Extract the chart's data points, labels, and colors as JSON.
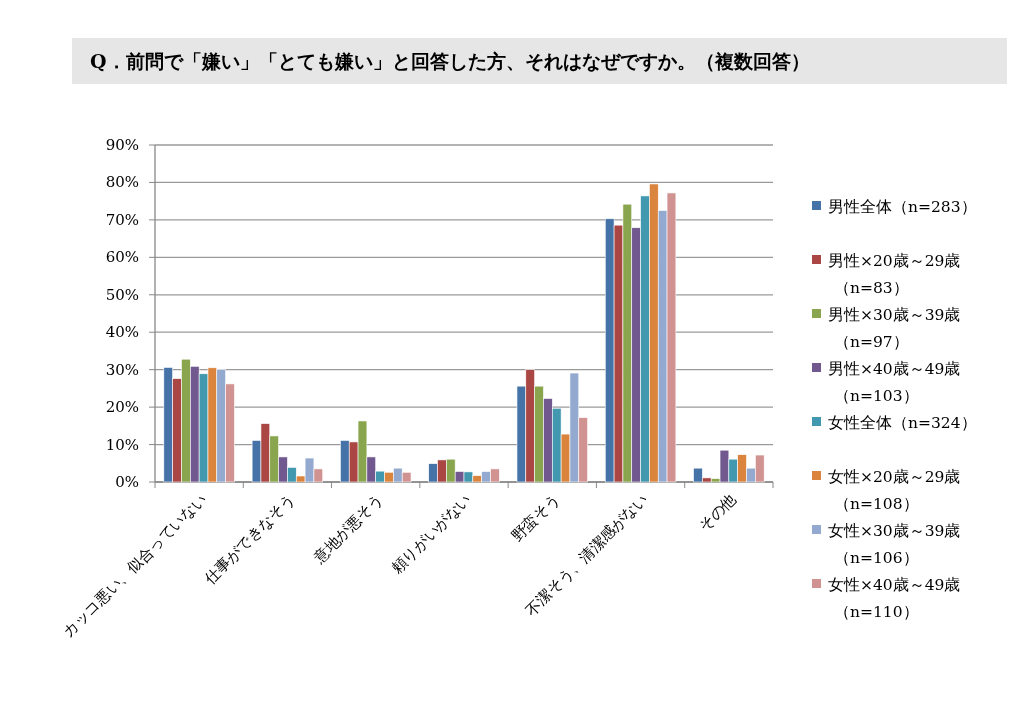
{
  "chart_data": {
    "type": "bar",
    "title": "Q．前問で「嫌い」「とても嫌い」と回答した方、それはなぜですか。（複数回答）",
    "categories": [
      "カッコ悪い、似合っていない",
      "仕事ができなそう",
      "意地が悪そう",
      "頼りがいがない",
      "野蛮そう",
      "不潔そう、清潔感がない",
      "その他"
    ],
    "series": [
      {
        "name": "男性全体（n=283）",
        "color": "#4572a7",
        "values": [
          30.6,
          11.1,
          11.1,
          4.9,
          25.6,
          70.3,
          3.7
        ]
      },
      {
        "name": "男性×20歳～29歳（n=83）",
        "color": "#aa4643",
        "values": [
          27.6,
          15.6,
          10.7,
          5.9,
          30.0,
          68.6,
          1.1
        ]
      },
      {
        "name": "男性×30歳～39歳（n=97）",
        "color": "#89a54e",
        "values": [
          32.8,
          12.3,
          16.3,
          6.1,
          25.6,
          74.2,
          0.9
        ]
      },
      {
        "name": "男性×40歳～49歳（n=103）",
        "color": "#71588f",
        "values": [
          30.9,
          6.7,
          6.7,
          2.8,
          22.3,
          67.9,
          8.5
        ]
      },
      {
        "name": "女性全体（n=324）",
        "color": "#4198af",
        "values": [
          28.9,
          3.9,
          2.9,
          2.7,
          19.7,
          76.4,
          6.1
        ]
      },
      {
        "name": "女性×20歳～29歳（n=108）",
        "color": "#db843d",
        "values": [
          30.5,
          1.6,
          2.6,
          1.7,
          12.8,
          79.6,
          7.3
        ]
      },
      {
        "name": "女性×30歳～39歳（n=106）",
        "color": "#93a9cf",
        "values": [
          30.1,
          6.4,
          3.7,
          2.8,
          29.1,
          72.5,
          3.7
        ]
      },
      {
        "name": "女性×40歳～49歳（n=110）",
        "color": "#d19392",
        "values": [
          26.2,
          3.5,
          2.6,
          3.5,
          17.2,
          77.2,
          7.2
        ]
      }
    ],
    "ylim": [
      0,
      90
    ],
    "yticks": [
      {
        "value": 0,
        "label": "0%"
      },
      {
        "value": 10,
        "label": "10%"
      },
      {
        "value": 20,
        "label": "20%"
      },
      {
        "value": 30,
        "label": "30%"
      },
      {
        "value": 40,
        "label": "40%"
      },
      {
        "value": 50,
        "label": "50%"
      },
      {
        "value": 60,
        "label": "60%"
      },
      {
        "value": 70,
        "label": "70%"
      },
      {
        "value": 80,
        "label": "80%"
      },
      {
        "value": 90,
        "label": "90%"
      }
    ],
    "grid": "y",
    "legend": "right"
  }
}
